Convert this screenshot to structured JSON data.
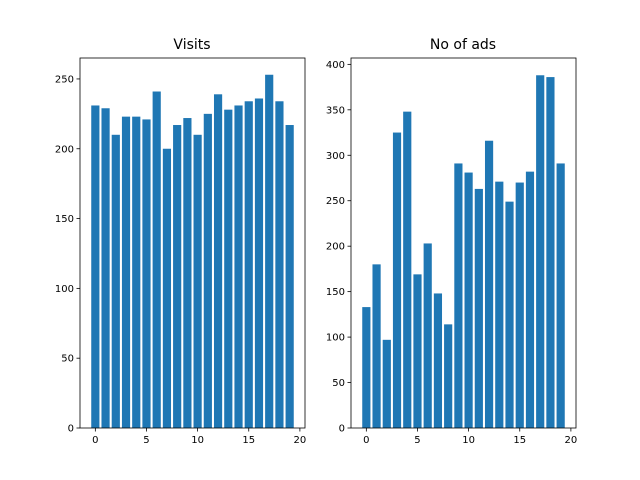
{
  "chart_data": [
    {
      "type": "bar",
      "title": "Visits",
      "xlabel": "",
      "ylabel": "",
      "x": [
        0,
        1,
        2,
        3,
        4,
        5,
        6,
        7,
        8,
        9,
        10,
        11,
        12,
        13,
        14,
        15,
        16,
        17,
        18,
        19
      ],
      "values": [
        231,
        229,
        210,
        223,
        223,
        221,
        241,
        200,
        217,
        222,
        210,
        225,
        239,
        228,
        231,
        234,
        236,
        253,
        234,
        217
      ],
      "xlim": [
        -1.5,
        20.5
      ],
      "ylim": [
        0,
        265
      ],
      "xticks": [
        0,
        5,
        10,
        15,
        20
      ],
      "yticks": [
        0,
        50,
        100,
        150,
        200,
        250
      ],
      "grid": false,
      "color": "#1f77b4"
    },
    {
      "type": "bar",
      "title": "No of ads",
      "xlabel": "",
      "ylabel": "",
      "x": [
        0,
        1,
        2,
        3,
        4,
        5,
        6,
        7,
        8,
        9,
        10,
        11,
        12,
        13,
        14,
        15,
        16,
        17,
        18,
        19
      ],
      "values": [
        133,
        180,
        97,
        325,
        348,
        169,
        203,
        148,
        114,
        291,
        281,
        263,
        316,
        271,
        249,
        270,
        282,
        388,
        386,
        291
      ],
      "xlim": [
        -1.5,
        20.5
      ],
      "ylim": [
        0,
        407
      ],
      "xticks": [
        0,
        5,
        10,
        15,
        20
      ],
      "yticks": [
        0,
        50,
        100,
        150,
        200,
        250,
        300,
        350,
        400
      ],
      "grid": false,
      "color": "#1f77b4"
    }
  ]
}
